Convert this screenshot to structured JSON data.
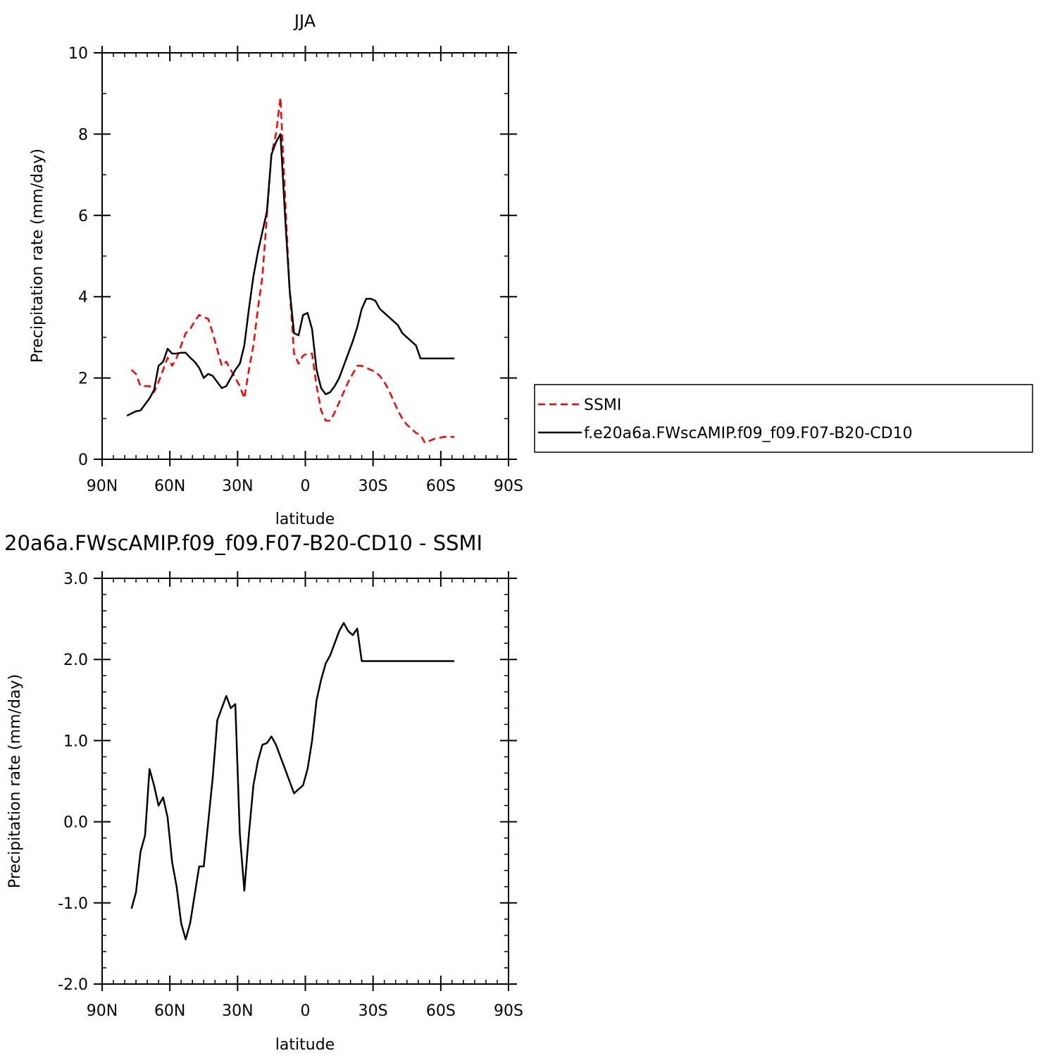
{
  "chart_data": [
    {
      "type": "line",
      "title": "JJA",
      "xlabel": "latitude",
      "ylabel": "Precipitation rate (mm/day)",
      "xlim": [
        90,
        -90
      ],
      "ylim": [
        0,
        10
      ],
      "x_major_ticks": [
        90,
        60,
        30,
        0,
        -30,
        -60,
        -90
      ],
      "x_tick_labels": [
        "90N",
        "60N",
        "30N",
        "0",
        "30S",
        "60S",
        "90S"
      ],
      "y_major_ticks": [
        0,
        2,
        4,
        6,
        8,
        10
      ],
      "y_tick_labels": [
        "0",
        "2",
        "4",
        "6",
        "8",
        "10"
      ],
      "legend": {
        "placement": "right, outside plot"
      },
      "series": [
        {
          "name": "SSMI",
          "color": "#ff0000",
          "dash": true,
          "x": [
            77,
            75,
            73,
            71,
            69,
            67,
            65,
            63,
            61,
            59,
            57,
            55,
            53,
            51,
            49,
            47,
            45,
            43,
            41,
            39,
            37,
            35,
            33,
            31,
            29,
            27,
            25,
            23,
            21,
            19,
            17,
            15,
            13,
            11,
            9,
            7,
            5,
            3,
            1,
            -1,
            -3,
            -5,
            -7,
            -9,
            -11,
            -13,
            -15,
            -17,
            -19,
            -21,
            -23,
            -25,
            -27,
            -29,
            -31,
            -33,
            -35,
            -37,
            -39,
            -41,
            -43,
            -45,
            -47,
            -49,
            -51,
            -53,
            -55,
            -57,
            -59,
            -61,
            -63,
            -65,
            -66
          ],
          "y": [
            2.2,
            2.1,
            1.8,
            1.8,
            1.8,
            1.65,
            1.9,
            2.2,
            2.5,
            2.3,
            2.5,
            2.8,
            3.1,
            3.2,
            3.4,
            3.55,
            3.5,
            3.45,
            3.1,
            2.7,
            2.3,
            2.4,
            2.2,
            2.0,
            1.8,
            1.5,
            2.2,
            2.8,
            3.7,
            4.5,
            6.0,
            7.5,
            8.0,
            8.9,
            6.5,
            4.2,
            2.6,
            2.35,
            2.55,
            2.6,
            2.6,
            1.8,
            1.2,
            0.95,
            0.95,
            1.15,
            1.4,
            1.65,
            1.9,
            2.1,
            2.3,
            2.3,
            2.25,
            2.2,
            2.15,
            2.05,
            1.9,
            1.7,
            1.45,
            1.2,
            1.0,
            0.85,
            0.75,
            0.65,
            0.6,
            0.4,
            0.45,
            0.5,
            0.52,
            0.55,
            0.55,
            0.55,
            0.55
          ]
        },
        {
          "name": "f.e20a6a.FWscAMIP.f09_f09.F07-B20-CD10",
          "color": "#000000",
          "dash": false,
          "x": [
            79,
            77,
            75,
            73,
            71,
            69,
            67,
            65,
            63,
            61,
            59,
            57,
            55,
            53,
            51,
            49,
            47,
            45,
            43,
            41,
            39,
            37,
            35,
            33,
            31,
            29,
            27,
            25,
            23,
            21,
            19,
            17,
            15,
            13,
            11,
            9,
            7,
            5,
            3,
            1,
            -1,
            -3,
            -5,
            -7,
            -9,
            -11,
            -13,
            -15,
            -17,
            -19,
            -21,
            -23,
            -25,
            -27,
            -29,
            -31,
            -33,
            -35,
            -37,
            -39,
            -41,
            -43,
            -45,
            -47,
            -49,
            -51,
            -53,
            -55,
            -57,
            -59,
            -61,
            -63,
            -65,
            -66
          ],
          "y": [
            1.07,
            1.13,
            1.18,
            1.2,
            1.35,
            1.5,
            1.7,
            2.3,
            2.4,
            2.72,
            2.6,
            2.6,
            2.62,
            2.62,
            2.5,
            2.4,
            2.25,
            2.0,
            2.1,
            2.05,
            1.9,
            1.75,
            1.8,
            2.0,
            2.2,
            2.35,
            2.8,
            3.7,
            4.5,
            5.1,
            5.6,
            6.1,
            7.5,
            7.8,
            8.0,
            6.0,
            4.2,
            3.1,
            3.05,
            3.55,
            3.6,
            3.2,
            2.2,
            1.75,
            1.6,
            1.65,
            1.8,
            2.0,
            2.3,
            2.6,
            2.9,
            3.25,
            3.7,
            3.95,
            3.95,
            3.9,
            3.7,
            3.6,
            3.5,
            3.4,
            3.3,
            3.1,
            3.0,
            2.9,
            2.8,
            2.48,
            2.48,
            2.48,
            2.48,
            2.48,
            2.48,
            2.48,
            2.48,
            2.48
          ]
        }
      ]
    },
    {
      "type": "line",
      "title": "20a6a.FWscAMIP.f09_f09.F07-B20-CD10 - SSMI",
      "xlabel": "latitude",
      "ylabel": "Precipitation rate (mm/day)",
      "xlim": [
        90,
        -90
      ],
      "ylim": [
        -2.0,
        3.0
      ],
      "x_major_ticks": [
        90,
        60,
        30,
        0,
        -30,
        -60,
        -90
      ],
      "x_tick_labels": [
        "90N",
        "60N",
        "30N",
        "0",
        "30S",
        "60S",
        "90S"
      ],
      "y_major_ticks": [
        -2.0,
        -1.0,
        0.0,
        1.0,
        2.0,
        3.0
      ],
      "y_tick_labels": [
        "-2.0",
        "-1.0",
        "0.0",
        "1.0",
        "2.0",
        "3.0"
      ],
      "series": [
        {
          "color": "#000000",
          "dash": false,
          "x": [
            77,
            75,
            73,
            71,
            69,
            67,
            65,
            63,
            61,
            59,
            57,
            55,
            53,
            51,
            49,
            47,
            45,
            43,
            41,
            39,
            37,
            35,
            33,
            31,
            29,
            27,
            25,
            23,
            21,
            19,
            17,
            15,
            13,
            11,
            9,
            7,
            5,
            3,
            1,
            -1,
            -3,
            -5,
            -7,
            -9,
            -11,
            -13,
            -15,
            -17,
            -19,
            -21,
            -23,
            -25,
            -27,
            -29,
            -31,
            -33,
            -35,
            -37,
            -39,
            -41,
            -43,
            -45,
            -47,
            -49,
            -51,
            -53,
            -55,
            -57,
            -59,
            -61,
            -63,
            -65,
            -66
          ],
          "y": [
            -1.07,
            -0.87,
            -0.37,
            -0.17,
            0.65,
            0.45,
            0.2,
            0.3,
            0.05,
            -0.5,
            -0.8,
            -1.25,
            -1.45,
            -1.25,
            -0.9,
            -0.55,
            -0.55,
            0.0,
            0.55,
            1.25,
            1.4,
            1.55,
            1.4,
            1.45,
            -0.15,
            -0.85,
            -0.15,
            0.45,
            0.75,
            0.95,
            0.97,
            1.05,
            0.95,
            0.8,
            0.65,
            0.5,
            0.35,
            0.4,
            0.45,
            0.65,
            1.0,
            1.5,
            1.75,
            1.95,
            2.05,
            2.2,
            2.35,
            2.45,
            2.35,
            2.3,
            2.38,
            1.98,
            1.98,
            1.98,
            1.98,
            1.98,
            1.98,
            1.98,
            1.98,
            1.98,
            1.98,
            1.98,
            1.98,
            1.98,
            1.98,
            1.98,
            1.98,
            1.98,
            1.98,
            1.98,
            1.98,
            1.98,
            1.98
          ]
        }
      ]
    }
  ]
}
